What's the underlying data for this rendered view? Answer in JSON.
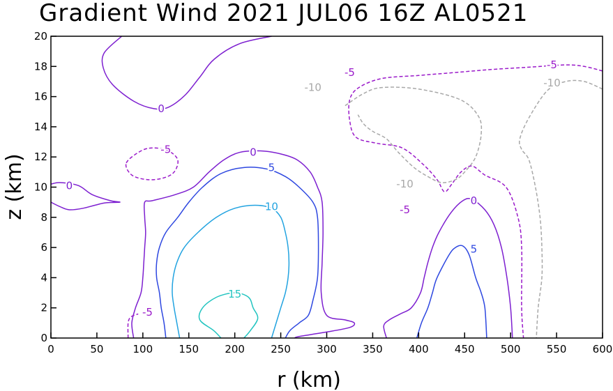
{
  "chart_data": {
    "type": "contour",
    "title": "Gradient Wind 2021 JUL06 16Z  AL0521",
    "xlabel": "r (km)",
    "ylabel": "z (km)",
    "xlim": [
      0,
      600
    ],
    "ylim": [
      0,
      20
    ],
    "xticks": [
      "0",
      "50",
      "100",
      "150",
      "200",
      "250",
      "300",
      "350",
      "400",
      "450",
      "500",
      "550",
      "600"
    ],
    "yticks": [
      "0",
      "2",
      "4",
      "6",
      "8",
      "10",
      "12",
      "14",
      "16",
      "18",
      "20"
    ],
    "grid": false,
    "colors": {
      "neg10": "#a8a8a8",
      "neg5": "#9a1aca",
      "zero": "#7d1fd0",
      "pos5": "#2d47e0",
      "pos10": "#22a3e0",
      "pos15": "#22c4c0"
    },
    "labels": [
      {
        "text": "0",
        "level": "zero",
        "x": 20,
        "y": 10.1
      },
      {
        "text": "0",
        "level": "zero",
        "x": 120,
        "y": 15.2
      },
      {
        "text": "-5",
        "level": "neg5",
        "x": 125,
        "y": 12.5
      },
      {
        "text": "0",
        "level": "zero",
        "x": 220,
        "y": 12.3
      },
      {
        "text": "5",
        "level": "pos5",
        "x": 240,
        "y": 11.3
      },
      {
        "text": "10",
        "level": "pos10",
        "x": 240,
        "y": 8.7
      },
      {
        "text": "15",
        "level": "pos15",
        "x": 200,
        "y": 2.9
      },
      {
        "text": "-5",
        "level": "neg5",
        "x": 105,
        "y": 1.7
      },
      {
        "text": "-5",
        "level": "neg5",
        "x": 325,
        "y": 17.6
      },
      {
        "text": "-10",
        "level": "neg10",
        "x": 285,
        "y": 16.6
      },
      {
        "text": "-10",
        "level": "neg10",
        "x": 385,
        "y": 10.2
      },
      {
        "text": "-5",
        "level": "neg5",
        "x": 385,
        "y": 8.5
      },
      {
        "text": "-5",
        "level": "neg5",
        "x": 545,
        "y": 18.1
      },
      {
        "text": "-10",
        "level": "neg10",
        "x": 545,
        "y": 16.9
      },
      {
        "text": "0",
        "level": "zero",
        "x": 460,
        "y": 9.1
      },
      {
        "text": "5",
        "level": "pos5",
        "x": 460,
        "y": 5.9
      }
    ],
    "contours": [
      {
        "level": "zero",
        "dash": false,
        "closed": false,
        "pts": [
          [
            77,
            20
          ],
          [
            58,
            18.9
          ],
          [
            57,
            17.9
          ],
          [
            67,
            16.8
          ],
          [
            90,
            15.7
          ],
          [
            112,
            15.2
          ],
          [
            128,
            15.3
          ],
          [
            146,
            16.1
          ],
          [
            162,
            17.3
          ],
          [
            178,
            18.5
          ],
          [
            205,
            19.5
          ],
          [
            240,
            20
          ]
        ]
      },
      {
        "level": "zero",
        "dash": false,
        "closed": false,
        "pts": [
          [
            0,
            10.2
          ],
          [
            10,
            10.3
          ],
          [
            30,
            10.1
          ],
          [
            45,
            9.5
          ],
          [
            65,
            9.1
          ],
          [
            75,
            9.0
          ],
          [
            58,
            8.95
          ],
          [
            35,
            8.6
          ],
          [
            20,
            8.5
          ],
          [
            10,
            8.7
          ],
          [
            0,
            9.0
          ]
        ]
      },
      {
        "level": "neg5",
        "dash": true,
        "closed": true,
        "pts": [
          [
            82,
            11.6
          ],
          [
            98,
            12.4
          ],
          [
            112,
            12.6
          ],
          [
            128,
            12.4
          ],
          [
            138,
            11.8
          ],
          [
            134,
            11.0
          ],
          [
            122,
            10.6
          ],
          [
            105,
            10.5
          ],
          [
            88,
            10.8
          ]
        ]
      },
      {
        "level": "zero",
        "dash": false,
        "closed": false,
        "pts": [
          [
            90,
            0
          ],
          [
            88,
            1
          ],
          [
            92,
            2
          ],
          [
            98,
            3
          ],
          [
            100,
            4
          ],
          [
            101,
            5
          ],
          [
            102,
            6
          ],
          [
            103,
            7
          ],
          [
            102,
            8
          ],
          [
            102,
            9
          ],
          [
            110,
            9.1
          ],
          [
            135,
            9.5
          ],
          [
            155,
            10
          ],
          [
            172,
            11
          ],
          [
            188,
            11.8
          ],
          [
            205,
            12.3
          ],
          [
            228,
            12.4
          ],
          [
            250,
            12.2
          ],
          [
            268,
            11.8
          ],
          [
            282,
            11
          ],
          [
            290,
            10
          ],
          [
            295,
            9
          ],
          [
            296,
            7
          ],
          [
            295,
            5
          ],
          [
            294,
            3
          ],
          [
            300,
            1.5
          ],
          [
            320,
            1.2
          ],
          [
            330,
            1
          ],
          [
            325,
            0.7
          ],
          [
            300,
            0.4
          ],
          [
            270,
            0.1
          ],
          [
            265,
            0
          ]
        ]
      },
      {
        "level": "pos5",
        "dash": false,
        "closed": false,
        "pts": [
          [
            125,
            0
          ],
          [
            123,
            1
          ],
          [
            120,
            2
          ],
          [
            118,
            3
          ],
          [
            115,
            4
          ],
          [
            115,
            5
          ],
          [
            118,
            6
          ],
          [
            125,
            7
          ],
          [
            138,
            8
          ],
          [
            150,
            9
          ],
          [
            165,
            10
          ],
          [
            185,
            10.9
          ],
          [
            210,
            11.3
          ],
          [
            235,
            11.2
          ],
          [
            255,
            10.7
          ],
          [
            270,
            10
          ],
          [
            285,
            9
          ],
          [
            290,
            8
          ],
          [
            291,
            6
          ],
          [
            290,
            4
          ],
          [
            285,
            2.5
          ],
          [
            280,
            1.5
          ],
          [
            270,
            1
          ],
          [
            260,
            0.5
          ],
          [
            255,
            0
          ]
        ]
      },
      {
        "level": "pos10",
        "dash": false,
        "closed": false,
        "pts": [
          [
            140,
            0
          ],
          [
            137,
            1
          ],
          [
            134,
            2
          ],
          [
            132,
            3
          ],
          [
            133,
            4
          ],
          [
            137,
            5
          ],
          [
            145,
            6
          ],
          [
            160,
            7
          ],
          [
            180,
            8
          ],
          [
            200,
            8.6
          ],
          [
            222,
            8.8
          ],
          [
            240,
            8.6
          ],
          [
            250,
            8
          ],
          [
            255,
            7
          ],
          [
            258,
            6
          ],
          [
            259,
            5
          ],
          [
            258,
            4
          ],
          [
            255,
            3
          ],
          [
            250,
            2
          ],
          [
            245,
            1
          ],
          [
            240,
            0
          ]
        ]
      },
      {
        "level": "pos15",
        "dash": false,
        "closed": false,
        "pts": [
          [
            185,
            0
          ],
          [
            177,
            0.5
          ],
          [
            162,
            1.2
          ],
          [
            165,
            2
          ],
          [
            180,
            2.7
          ],
          [
            200,
            3
          ],
          [
            215,
            2.7
          ],
          [
            220,
            2
          ],
          [
            225,
            1.3
          ],
          [
            217,
            0.5
          ],
          [
            210,
            0
          ]
        ]
      },
      {
        "level": "neg5",
        "dash": true,
        "closed": false,
        "pts": [
          [
            84,
            0
          ],
          [
            84,
            1
          ],
          [
            87,
            1.4
          ],
          [
            95,
            1.6
          ]
        ]
      },
      {
        "level": "neg5",
        "dash": true,
        "closed": false,
        "pts": [
          [
            600,
            17.7
          ],
          [
            580,
            18.0
          ],
          [
            560,
            18.1
          ],
          [
            520,
            17.95
          ],
          [
            480,
            17.8
          ],
          [
            440,
            17.6
          ],
          [
            400,
            17.4
          ],
          [
            360,
            17.2
          ],
          [
            335,
            16.6
          ],
          [
            325,
            15.8
          ],
          [
            325,
            14.4
          ],
          [
            332,
            13.3
          ],
          [
            355,
            12.9
          ],
          [
            382,
            12.6
          ],
          [
            405,
            11.5
          ],
          [
            420,
            10.5
          ],
          [
            428,
            9.7
          ],
          [
            436,
            10.2
          ],
          [
            446,
            11
          ],
          [
            458,
            11.4
          ],
          [
            472,
            10.8
          ],
          [
            495,
            10
          ],
          [
            508,
            8
          ],
          [
            512,
            6
          ],
          [
            512,
            2
          ],
          [
            514,
            0
          ]
        ]
      },
      {
        "level": "neg10",
        "dash": true,
        "closed": false,
        "pts": [
          [
            600,
            16.5
          ],
          [
            580,
            17
          ],
          [
            560,
            17
          ],
          [
            540,
            16.4
          ],
          [
            520,
            14.6
          ],
          [
            510,
            13.2
          ],
          [
            512,
            12.5
          ],
          [
            520,
            11.8
          ],
          [
            527,
            10
          ],
          [
            532,
            8
          ],
          [
            534,
            6
          ],
          [
            534,
            4
          ],
          [
            530,
            2
          ],
          [
            528,
            0
          ]
        ]
      },
      {
        "level": "neg10",
        "dash": true,
        "closed": false,
        "pts": [
          [
            320,
            15.4
          ],
          [
            340,
            16.2
          ],
          [
            360,
            16.6
          ],
          [
            400,
            16.5
          ],
          [
            445,
            15.8
          ],
          [
            465,
            14.7
          ],
          [
            468,
            13.5
          ],
          [
            462,
            12
          ],
          [
            450,
            11
          ],
          [
            440,
            10.5
          ],
          [
            425,
            10.3
          ],
          [
            410,
            10.7
          ],
          [
            395,
            11.3
          ],
          [
            378,
            12.3
          ],
          [
            365,
            13.2
          ],
          [
            350,
            13.7
          ],
          [
            340,
            14.2
          ],
          [
            334,
            14.8
          ]
        ]
      },
      {
        "level": "zero",
        "dash": false,
        "closed": false,
        "pts": [
          [
            365,
            0
          ],
          [
            362,
            0.8
          ],
          [
            368,
            1.2
          ],
          [
            380,
            1.6
          ],
          [
            392,
            2
          ],
          [
            402,
            3
          ],
          [
            406,
            4
          ],
          [
            410,
            5
          ],
          [
            415,
            6
          ],
          [
            422,
            7
          ],
          [
            435,
            8.3
          ],
          [
            448,
            9.1
          ],
          [
            458,
            9.2
          ],
          [
            472,
            8.5
          ],
          [
            482,
            7.5
          ],
          [
            490,
            6
          ],
          [
            496,
            4
          ],
          [
            500,
            2
          ],
          [
            502,
            0
          ]
        ]
      },
      {
        "level": "pos5",
        "dash": false,
        "closed": false,
        "pts": [
          [
            398,
            0
          ],
          [
            403,
            1
          ],
          [
            410,
            2
          ],
          [
            415,
            3
          ],
          [
            420,
            4
          ],
          [
            433,
            5.5
          ],
          [
            440,
            6
          ],
          [
            448,
            6.1
          ],
          [
            455,
            5.5
          ],
          [
            462,
            4
          ],
          [
            468,
            3
          ],
          [
            472,
            2
          ],
          [
            474,
            0
          ]
        ]
      }
    ]
  }
}
